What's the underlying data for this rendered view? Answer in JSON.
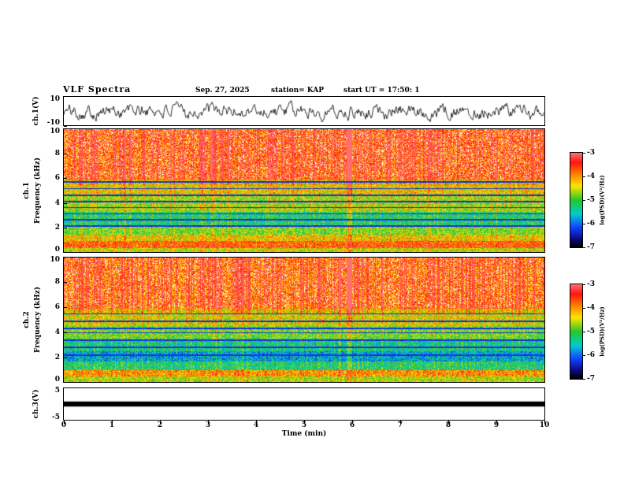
{
  "header": {
    "title": "VLF Spectra",
    "date": "Sep. 27, 2025",
    "station": "station= KAP",
    "start_ut": "start UT  =  17:50: 1"
  },
  "xaxis": {
    "label": "Time (min)",
    "range": [
      0,
      10
    ],
    "ticks": [
      0,
      1,
      2,
      3,
      4,
      5,
      6,
      7,
      8,
      9,
      10
    ]
  },
  "chart_data": [
    {
      "type": "line",
      "name": "ch1-waveform",
      "ylabel": "ch.1(V)",
      "ylim": [
        -10,
        10
      ],
      "yticks": [
        10,
        -10
      ],
      "x_range_min": [
        0,
        10
      ],
      "series_note": "broadband noisy voltage trace, mean 0 V, peaks about ±8 V, black line",
      "color": "#000000",
      "seed": 101
    },
    {
      "type": "heatmap",
      "name": "ch1-spectrogram",
      "ylabel_line1": "ch.1",
      "ylabel_line2": "Frequency (kHz)",
      "ylim": [
        0,
        10
      ],
      "yticks": [
        0,
        2,
        4,
        6,
        8,
        10
      ],
      "x_range_min": [
        0,
        10
      ],
      "colorbar": {
        "label": "log(PSD)(V²/Hz)",
        "ticks": [
          -3,
          -4,
          -5,
          -6,
          -7
        ],
        "range": [
          -3,
          -7
        ]
      },
      "bands": [
        {
          "f": [
            0.0,
            0.35
          ],
          "psd": -4.6
        },
        {
          "f": [
            0.35,
            0.95
          ],
          "psd": -3.8
        },
        {
          "f": [
            0.95,
            1.45
          ],
          "psd": -4.4
        },
        {
          "f": [
            1.45,
            2.1
          ],
          "psd": -4.9
        },
        {
          "f": [
            2.1,
            3.3
          ],
          "psd": -5.3
        },
        {
          "f": [
            3.3,
            4.7
          ],
          "psd": -4.7
        },
        {
          "f": [
            4.7,
            5.9
          ],
          "psd": -4.4
        },
        {
          "f": [
            5.9,
            10.01
          ],
          "psd": -3.8
        }
      ],
      "dark_lines_khz": [
        2.15,
        2.65,
        3.15,
        3.65,
        4.15,
        4.65,
        5.2,
        5.75
      ],
      "strong_streak_min": 5.93,
      "seed": 202
    },
    {
      "type": "heatmap",
      "name": "ch2-spectrogram",
      "ylabel_line1": "ch.2",
      "ylabel_line2": "Frequency (kHz)",
      "ylim": [
        0,
        10
      ],
      "yticks": [
        0,
        2,
        4,
        6,
        8,
        10
      ],
      "x_range_min": [
        0,
        10
      ],
      "colorbar": {
        "label": "log(PSD)(V²/Hz)",
        "ticks": [
          -3,
          -4,
          -5,
          -6,
          -7
        ],
        "range": [
          -3,
          -7
        ]
      },
      "bands": [
        {
          "f": [
            0.0,
            0.5
          ],
          "psd": -4.7
        },
        {
          "f": [
            0.5,
            0.95
          ],
          "psd": -4.1
        },
        {
          "f": [
            0.95,
            1.7
          ],
          "psd": -5.3
        },
        {
          "f": [
            1.7,
            2.5
          ],
          "psd": -5.8
        },
        {
          "f": [
            2.5,
            3.5
          ],
          "psd": -5.4
        },
        {
          "f": [
            3.5,
            4.5
          ],
          "psd": -4.9
        },
        {
          "f": [
            4.5,
            5.9
          ],
          "psd": -4.5
        },
        {
          "f": [
            5.9,
            10.01
          ],
          "psd": -3.9
        }
      ],
      "dark_lines_khz": [
        2.2,
        2.8,
        3.4,
        4.0,
        4.35,
        4.9,
        5.5
      ],
      "strong_streak_min": 5.93,
      "seed": 303
    },
    {
      "type": "area",
      "name": "ch3-level",
      "ylabel": "ch.3(V)",
      "ylim": [
        -5,
        5
      ],
      "yticks": [
        5,
        -5
      ],
      "x_range_min": [
        0,
        10
      ],
      "series_note": "saturated constant band around 0 V rendered as a solid black bar full width",
      "bar_halfwidth_v": 0.8,
      "color": "#000000"
    }
  ]
}
